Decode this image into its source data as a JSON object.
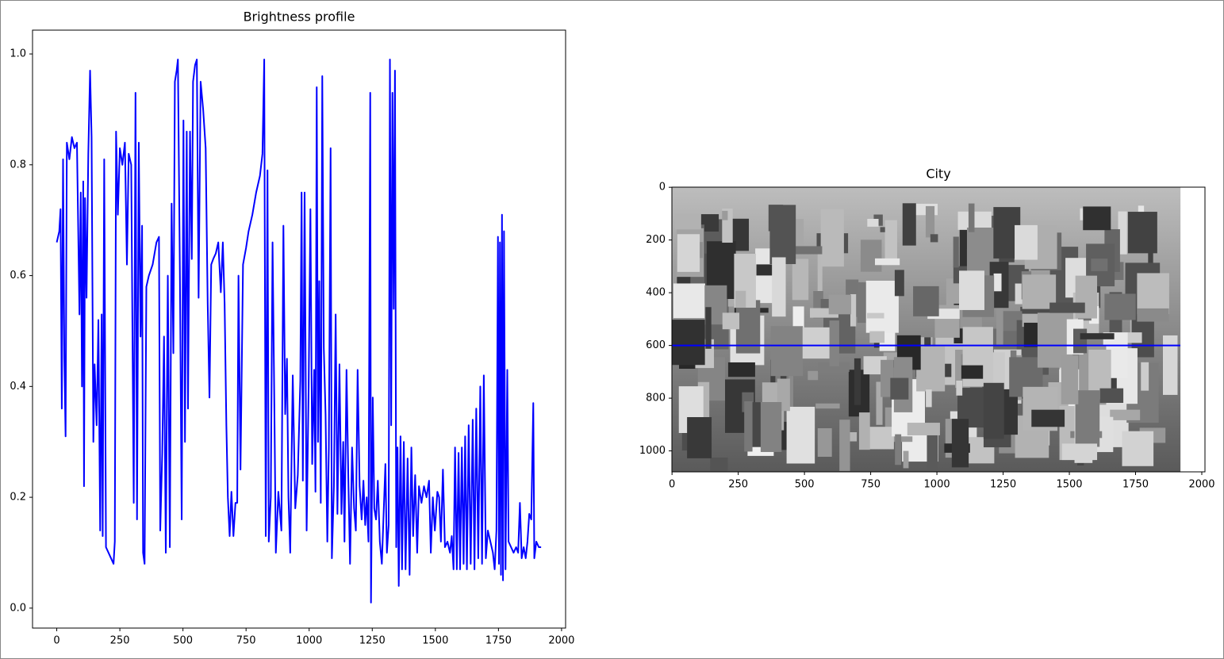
{
  "chart_data": [
    {
      "type": "line",
      "title": "Brightness profile",
      "x": [
        0,
        10,
        15,
        20,
        25,
        30,
        35,
        40,
        50,
        60,
        70,
        80,
        90,
        95,
        100,
        105,
        108,
        112,
        118,
        125,
        132,
        138,
        145,
        150,
        158,
        165,
        172,
        178,
        182,
        188,
        195,
        205,
        215,
        225,
        230,
        235,
        242,
        250,
        260,
        270,
        278,
        285,
        295,
        305,
        312,
        318,
        325,
        332,
        338,
        342,
        348,
        355,
        365,
        380,
        395,
        405,
        410,
        418,
        425,
        432,
        440,
        448,
        455,
        462,
        468,
        475,
        480,
        488,
        495,
        502,
        508,
        515,
        520,
        528,
        535,
        540,
        548,
        555,
        562,
        570,
        580,
        590,
        598,
        605,
        612,
        620,
        630,
        640,
        650,
        658,
        665,
        672,
        678,
        685,
        692,
        700,
        708,
        715,
        720,
        728,
        738,
        750,
        760,
        775,
        790,
        805,
        815,
        822,
        828,
        835,
        840,
        848,
        855,
        862,
        868,
        878,
        890,
        898,
        905,
        912,
        918,
        925,
        935,
        945,
        955,
        965,
        970,
        975,
        982,
        990,
        998,
        1005,
        1012,
        1020,
        1025,
        1030,
        1035,
        1040,
        1046,
        1052,
        1058,
        1065,
        1072,
        1078,
        1085,
        1090,
        1098,
        1105,
        1112,
        1120,
        1128,
        1135,
        1140,
        1148,
        1155,
        1162,
        1170,
        1178,
        1185,
        1192,
        1200,
        1208,
        1215,
        1222,
        1228,
        1235,
        1242,
        1245,
        1252,
        1258,
        1265,
        1272,
        1280,
        1288,
        1295,
        1302,
        1308,
        1315,
        1320,
        1325,
        1330,
        1335,
        1340,
        1345,
        1350,
        1355,
        1362,
        1368,
        1375,
        1382,
        1390,
        1398,
        1405,
        1412,
        1420,
        1428,
        1435,
        1445,
        1455,
        1465,
        1475,
        1482,
        1490,
        1498,
        1508,
        1515,
        1522,
        1530,
        1538,
        1548,
        1558,
        1565,
        1572,
        1578,
        1585,
        1592,
        1598,
        1605,
        1612,
        1618,
        1625,
        1632,
        1640,
        1648,
        1655,
        1662,
        1670,
        1678,
        1685,
        1692,
        1700,
        1708,
        1718,
        1728,
        1735,
        1742,
        1748,
        1752,
        1756,
        1760,
        1764,
        1768,
        1772,
        1778,
        1785,
        1790,
        1800,
        1810,
        1820,
        1828,
        1835,
        1842,
        1850,
        1858,
        1865,
        1872,
        1880,
        1888,
        1892,
        1900,
        1910,
        1919
      ],
      "series": [
        {
          "color": "#0000ff",
          "values": [
            0.66,
            0.68,
            0.72,
            0.36,
            0.81,
            0.45,
            0.31,
            0.84,
            0.81,
            0.85,
            0.83,
            0.84,
            0.53,
            0.75,
            0.4,
            0.77,
            0.22,
            0.74,
            0.56,
            0.82,
            0.97,
            0.85,
            0.3,
            0.44,
            0.33,
            0.52,
            0.14,
            0.53,
            0.13,
            0.81,
            0.11,
            0.1,
            0.09,
            0.08,
            0.12,
            0.86,
            0.71,
            0.83,
            0.8,
            0.84,
            0.62,
            0.82,
            0.8,
            0.19,
            0.93,
            0.16,
            0.84,
            0.49,
            0.69,
            0.1,
            0.08,
            0.58,
            0.6,
            0.62,
            0.66,
            0.67,
            0.14,
            0.28,
            0.49,
            0.1,
            0.6,
            0.11,
            0.73,
            0.46,
            0.95,
            0.97,
            0.99,
            0.6,
            0.16,
            0.88,
            0.3,
            0.86,
            0.36,
            0.86,
            0.63,
            0.95,
            0.98,
            0.99,
            0.56,
            0.95,
            0.9,
            0.83,
            0.55,
            0.38,
            0.62,
            0.63,
            0.64,
            0.66,
            0.57,
            0.66,
            0.55,
            0.33,
            0.2,
            0.13,
            0.21,
            0.13,
            0.19,
            0.19,
            0.6,
            0.25,
            0.62,
            0.65,
            0.68,
            0.71,
            0.75,
            0.78,
            0.82,
            0.99,
            0.13,
            0.79,
            0.12,
            0.2,
            0.66,
            0.37,
            0.1,
            0.21,
            0.14,
            0.69,
            0.35,
            0.45,
            0.2,
            0.1,
            0.42,
            0.18,
            0.24,
            0.41,
            0.75,
            0.23,
            0.75,
            0.14,
            0.4,
            0.72,
            0.26,
            0.43,
            0.21,
            0.94,
            0.3,
            0.59,
            0.19,
            0.96,
            0.47,
            0.35,
            0.12,
            0.29,
            0.83,
            0.09,
            0.22,
            0.53,
            0.17,
            0.44,
            0.17,
            0.3,
            0.12,
            0.43,
            0.24,
            0.08,
            0.29,
            0.18,
            0.14,
            0.43,
            0.22,
            0.16,
            0.23,
            0.15,
            0.2,
            0.12,
            0.93,
            0.01,
            0.38,
            0.18,
            0.16,
            0.23,
            0.12,
            0.08,
            0.17,
            0.26,
            0.1,
            0.15,
            0.99,
            0.33,
            0.93,
            0.54,
            0.97,
            0.11,
            0.29,
            0.04,
            0.31,
            0.07,
            0.3,
            0.07,
            0.27,
            0.06,
            0.29,
            0.13,
            0.24,
            0.1,
            0.22,
            0.19,
            0.22,
            0.2,
            0.23,
            0.1,
            0.2,
            0.14,
            0.21,
            0.2,
            0.12,
            0.25,
            0.11,
            0.12,
            0.1,
            0.13,
            0.07,
            0.29,
            0.07,
            0.28,
            0.07,
            0.29,
            0.08,
            0.31,
            0.07,
            0.33,
            0.08,
            0.34,
            0.07,
            0.36,
            0.09,
            0.4,
            0.08,
            0.42,
            0.09,
            0.14,
            0.12,
            0.1,
            0.07,
            0.14,
            0.67,
            0.08,
            0.66,
            0.06,
            0.71,
            0.05,
            0.68,
            0.07,
            0.43,
            0.12,
            0.11,
            0.1,
            0.11,
            0.1,
            0.19,
            0.09,
            0.11,
            0.09,
            0.12,
            0.17,
            0.16,
            0.37,
            0.09,
            0.12,
            0.11,
            0.11
          ]
        }
      ],
      "xlim": [
        -96,
        2016
      ],
      "ylim": [
        -0.036,
        1.043
      ],
      "xticks": [
        0,
        250,
        500,
        750,
        1000,
        1250,
        1500,
        1750,
        2000
      ],
      "yticks": [
        {
          "value": 0,
          "label": "0.0"
        },
        0.2,
        0.4,
        0.6,
        0.8,
        {
          "value": 1,
          "label": "1.0"
        }
      ]
    },
    {
      "type": "image",
      "title": "City",
      "x": [
        0,
        1919
      ],
      "series": [
        {
          "color": "#0000ff",
          "values": [
            600,
            600
          ]
        }
      ],
      "xlim": [
        -0.5,
        2012
      ],
      "ylim": [
        1079.5,
        -0.5
      ],
      "xticks": [
        0,
        250,
        500,
        750,
        1000,
        1250,
        1500,
        1750,
        2000
      ],
      "yticks": [
        0,
        200,
        400,
        600,
        800,
        1000
      ]
    }
  ]
}
